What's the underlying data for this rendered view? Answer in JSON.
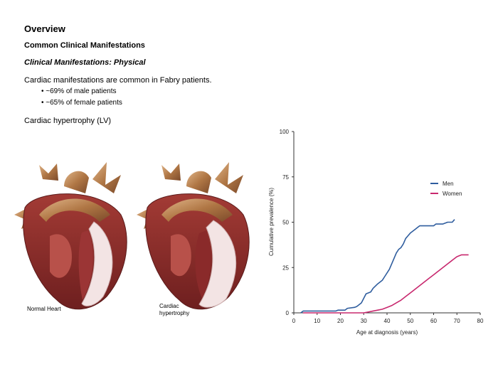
{
  "slide": {
    "title": "Overview",
    "section": "Common Clinical Manifestations",
    "subsection": "Clinical Manifestations: Physical",
    "intro": "Cardiac manifestations are common in Fabry patients.",
    "bullets": [
      "~69% of male patients",
      "~65% of female patients"
    ],
    "lv_label": "Cardiac hypertrophy (LV)"
  },
  "figures": {
    "normal_caption": "Normal Heart",
    "hypertrophy_caption": "Cardiac hypertrophy",
    "hypertrophy_caption_lines": [
      "Cardiac",
      "hypertrophy"
    ]
  },
  "colors": {
    "men": "#2f5d9e",
    "women": "#c8286e",
    "heart_outer": "#c9905c",
    "heart_muscle": "#8e2a2a",
    "heart_inner": "#b8514a"
  },
  "chart_data": {
    "type": "line",
    "xlabel": "Age at diagnosis (years)",
    "ylabel": "Cumulative prevalence (%)",
    "xlim": [
      0,
      80
    ],
    "ylim": [
      0,
      100
    ],
    "xticks": [
      0,
      10,
      20,
      30,
      40,
      50,
      60,
      70,
      80
    ],
    "yticks": [
      0,
      25,
      50,
      75,
      100
    ],
    "legend_position": "right",
    "series": [
      {
        "name": "Men",
        "x": [
          3,
          4,
          10,
          18,
          19,
          22,
          23,
          26,
          27,
          29,
          30,
          31,
          33,
          34,
          36,
          38,
          39,
          41,
          42,
          44,
          45,
          46,
          47,
          48,
          49,
          50,
          52,
          53,
          54,
          55,
          57,
          60,
          61,
          64,
          66,
          68,
          69
        ],
        "y": [
          0,
          1,
          1,
          1,
          1.5,
          1.5,
          2.5,
          3,
          3.5,
          5.5,
          8,
          10.5,
          11.5,
          13.5,
          16,
          18,
          20,
          24,
          27,
          33,
          35,
          36,
          38,
          41,
          42.5,
          44,
          46,
          47,
          48,
          48,
          48,
          48,
          49,
          49,
          50,
          50,
          51.5
        ]
      },
      {
        "name": "Women",
        "x": [
          4,
          10,
          20,
          28,
          30,
          32,
          34,
          36,
          38,
          40,
          42,
          44,
          46,
          48,
          50,
          52,
          54,
          56,
          58,
          60,
          62,
          64,
          66,
          68,
          70,
          72,
          75
        ],
        "y": [
          0,
          0,
          0,
          0,
          0,
          0.5,
          1,
          1.5,
          2,
          3,
          4,
          5.5,
          7,
          9,
          11,
          13,
          15,
          17,
          19,
          21,
          23,
          25,
          27,
          29,
          31,
          32,
          32
        ]
      }
    ]
  }
}
